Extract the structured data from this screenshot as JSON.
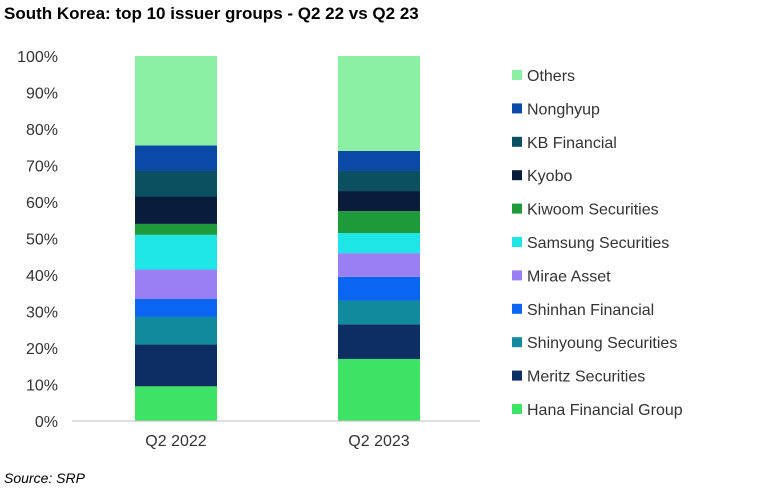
{
  "title": "South Korea: top 10 issuer groups - Q2 22 vs Q2 23",
  "source": "Source: SRP",
  "chart_data": {
    "type": "bar",
    "stacked": true,
    "normalized_percent": true,
    "categories": [
      "Q2 2022",
      "Q2 2023"
    ],
    "y_ticks": [
      "0%",
      "10%",
      "20%",
      "30%",
      "40%",
      "50%",
      "60%",
      "70%",
      "80%",
      "90%",
      "100%"
    ],
    "ylim": [
      0,
      100
    ],
    "grid": false,
    "legend_position": "right",
    "series": [
      {
        "name": "Hana Financial Group",
        "color": "#3de365",
        "values": [
          9.5,
          17.0
        ]
      },
      {
        "name": "Meritz Securities",
        "color": "#0c2e63",
        "values": [
          11.5,
          9.5
        ]
      },
      {
        "name": "Shinyoung Securities",
        "color": "#118a9e",
        "values": [
          7.5,
          6.5
        ]
      },
      {
        "name": "Shinhan Financial",
        "color": "#0a66f2",
        "values": [
          5.0,
          6.5
        ]
      },
      {
        "name": "Mirae Asset",
        "color": "#9a7ff4",
        "values": [
          8.0,
          6.5
        ]
      },
      {
        "name": "Samsung Securities",
        "color": "#1ee6e6",
        "values": [
          9.5,
          5.5
        ]
      },
      {
        "name": "Kiwoom Securities",
        "color": "#1e9a3a",
        "values": [
          3.0,
          6.0
        ]
      },
      {
        "name": "Kyobo",
        "color": "#0a1c3c",
        "values": [
          7.5,
          5.5
        ]
      },
      {
        "name": "KB Financial",
        "color": "#0b5060",
        "values": [
          7.0,
          5.5
        ]
      },
      {
        "name": "Nonghyup",
        "color": "#0a4aa6",
        "values": [
          7.0,
          5.5
        ]
      },
      {
        "name": "Others",
        "color": "#8cf0a4",
        "values": [
          24.5,
          26.0
        ]
      }
    ]
  }
}
